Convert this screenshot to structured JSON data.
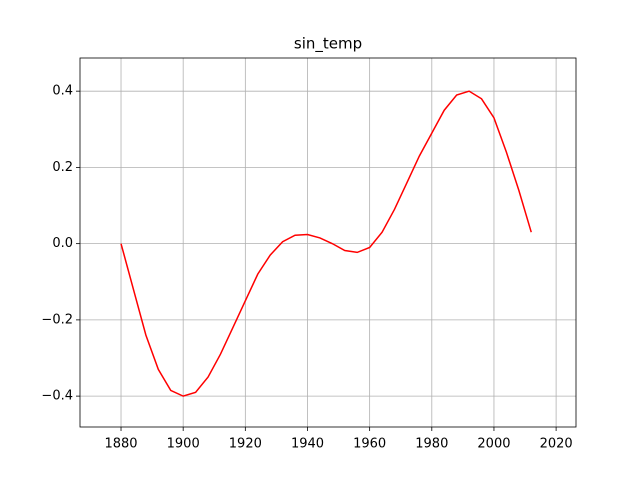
{
  "chart_data": {
    "type": "line",
    "title": "sin_temp",
    "x": [
      1880,
      1884,
      1888,
      1892,
      1896,
      1900,
      1904,
      1908,
      1912,
      1916,
      1920,
      1924,
      1928,
      1932,
      1936,
      1940,
      1944,
      1948,
      1952,
      1956,
      1960,
      1964,
      1968,
      1972,
      1976,
      1980,
      1984,
      1988,
      1992,
      1996,
      2000,
      2004,
      2008,
      2012
    ],
    "series": [
      {
        "name": "sin_temp",
        "color": "#ff0000",
        "values": [
          0,
          -0.12,
          -0.24,
          -0.33,
          -0.385,
          -0.4,
          -0.39,
          -0.35,
          -0.29,
          -0.22,
          -0.15,
          -0.08,
          -0.03,
          0.005,
          0.022,
          0.024,
          0.015,
          0.0,
          -0.018,
          -0.023,
          -0.01,
          0.03,
          0.09,
          0.16,
          0.23,
          0.29,
          0.35,
          0.39,
          0.4,
          0.38,
          0.33,
          0.24,
          0.14,
          0.03
        ]
      }
    ],
    "xlim": [
      1866.8,
      2026.4
    ],
    "xticks": [
      1880,
      1900,
      1920,
      1940,
      1960,
      1980,
      2000,
      2020
    ],
    "ylim": [
      -0.481,
      0.487
    ],
    "yticks": [
      {
        "value": -0.4,
        "label": "−0.4"
      },
      {
        "value": -0.2,
        "label": "−0.2"
      },
      {
        "value": 0,
        "label": "0.0"
      },
      0.2,
      0.4
    ],
    "grid": true
  }
}
